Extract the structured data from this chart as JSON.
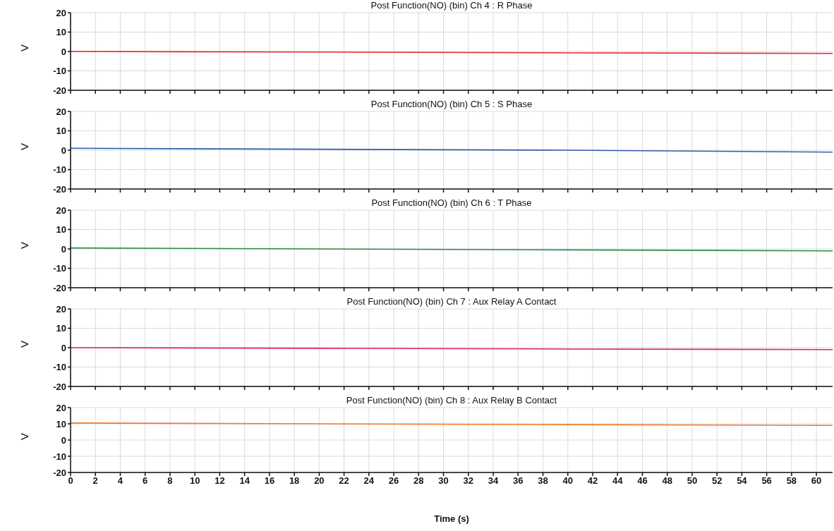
{
  "chart_data": [
    {
      "type": "line",
      "title": "Post Function(NO) (bin)  Ch 4 : R Phase",
      "ylabel": "V",
      "x": [
        0,
        20,
        40,
        61.3
      ],
      "series": [
        {
          "color": "#e8262a",
          "values": [
            0,
            -0.3,
            -0.7,
            -1
          ]
        }
      ],
      "xlim": [
        0,
        61.3
      ],
      "xticks": [
        0,
        2,
        4,
        6,
        8,
        10,
        12,
        14,
        16,
        18,
        20,
        22,
        24,
        26,
        28,
        30,
        32,
        34,
        36,
        38,
        40,
        42,
        44,
        46,
        48,
        50,
        52,
        54,
        56,
        58,
        60
      ],
      "ylim": [
        -20,
        20
      ],
      "yticks": [
        -20,
        -10,
        0,
        10,
        20
      ],
      "grid": true,
      "tick_labels": "y"
    },
    {
      "type": "line",
      "title": "Post Function(NO) (bin)  Ch 5 : S Phase",
      "ylabel": "V",
      "x": [
        0,
        20,
        40,
        61.3
      ],
      "series": [
        {
          "color": "#2e5fa8",
          "values": [
            1,
            0.5,
            0,
            -1
          ]
        }
      ],
      "xlim": [
        0,
        61.3
      ],
      "xticks": [
        0,
        2,
        4,
        6,
        8,
        10,
        12,
        14,
        16,
        18,
        20,
        22,
        24,
        26,
        28,
        30,
        32,
        34,
        36,
        38,
        40,
        42,
        44,
        46,
        48,
        50,
        52,
        54,
        56,
        58,
        60
      ],
      "ylim": [
        -20,
        20
      ],
      "yticks": [
        -20,
        -10,
        0,
        10,
        20
      ],
      "grid": true,
      "tick_labels": "y"
    },
    {
      "type": "line",
      "title": "Post Function(NO) (bin)  Ch 6 : T Phase",
      "ylabel": "V",
      "x": [
        0,
        20,
        40,
        61.3
      ],
      "series": [
        {
          "color": "#2f8a45",
          "values": [
            0.5,
            0,
            -0.5,
            -1
          ]
        }
      ],
      "xlim": [
        0,
        61.3
      ],
      "xticks": [
        0,
        2,
        4,
        6,
        8,
        10,
        12,
        14,
        16,
        18,
        20,
        22,
        24,
        26,
        28,
        30,
        32,
        34,
        36,
        38,
        40,
        42,
        44,
        46,
        48,
        50,
        52,
        54,
        56,
        58,
        60
      ],
      "ylim": [
        -20,
        20
      ],
      "yticks": [
        -20,
        -10,
        0,
        10,
        20
      ],
      "grid": true,
      "tick_labels": "y"
    },
    {
      "type": "line",
      "title": "Post Function(NO) (bin)  Ch 7 : Aux Relay A Contact",
      "ylabel": "V",
      "x": [
        0,
        20,
        40,
        61.3
      ],
      "series": [
        {
          "color": "#e0245c",
          "values": [
            0,
            -0.3,
            -0.7,
            -1
          ]
        }
      ],
      "xlim": [
        0,
        61.3
      ],
      "xticks": [
        0,
        2,
        4,
        6,
        8,
        10,
        12,
        14,
        16,
        18,
        20,
        22,
        24,
        26,
        28,
        30,
        32,
        34,
        36,
        38,
        40,
        42,
        44,
        46,
        48,
        50,
        52,
        54,
        56,
        58,
        60
      ],
      "ylim": [
        -20,
        20
      ],
      "yticks": [
        -20,
        -10,
        0,
        10,
        20
      ],
      "grid": true,
      "tick_labels": "y"
    },
    {
      "type": "line",
      "title": "Post Function(NO) (bin)  Ch 8 : Aux Relay B Contact",
      "ylabel": "V",
      "xlabel": "Time (s)",
      "x": [
        0,
        20,
        40,
        61.3
      ],
      "series": [
        {
          "color": "#f07a2a",
          "values": [
            10.5,
            10,
            9.5,
            9
          ]
        }
      ],
      "xlim": [
        0,
        61.3
      ],
      "xticks": [
        0,
        2,
        4,
        6,
        8,
        10,
        12,
        14,
        16,
        18,
        20,
        22,
        24,
        26,
        28,
        30,
        32,
        34,
        36,
        38,
        40,
        42,
        44,
        46,
        48,
        50,
        52,
        54,
        56,
        58,
        60
      ],
      "ylim": [
        -20,
        20
      ],
      "yticks": [
        -20,
        -10,
        0,
        10,
        20
      ],
      "grid": true
    }
  ]
}
